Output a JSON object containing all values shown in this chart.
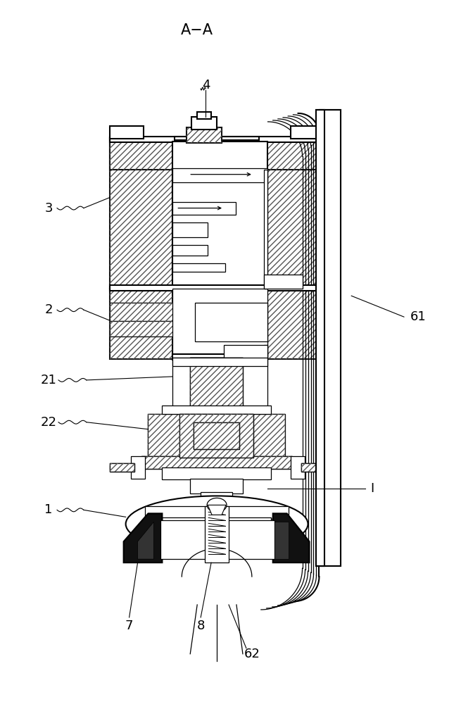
{
  "bg_color": "#ffffff",
  "lc": "#000000",
  "hc": "#555555",
  "lw_main": 1.5,
  "lw_thin": 0.9,
  "lw_hatch": 0.35,
  "lw_leader": 0.8,
  "fs": 13,
  "title": "A−A"
}
